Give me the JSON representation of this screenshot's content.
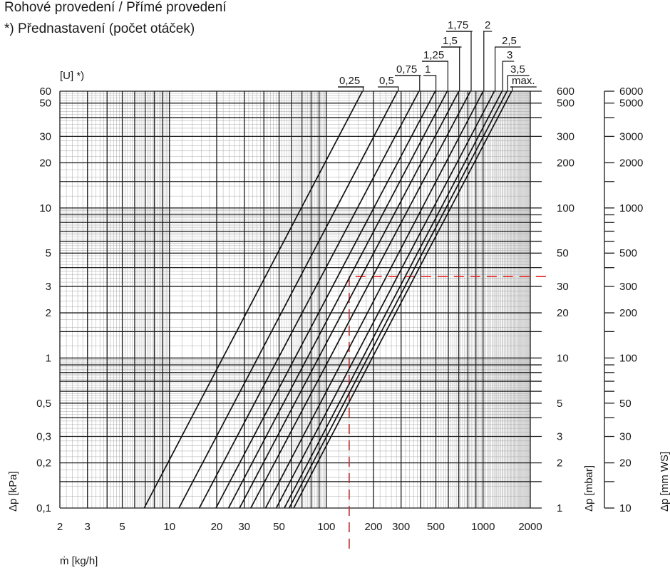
{
  "chart_data": {
    "type": "line",
    "title": "Rohové provedení / Přímé provedení",
    "subtitle": "*) Přednastavení (počet otáček)",
    "curve_group_label": "[U] *)",
    "xlabel": "ṁ [kg/h]",
    "ylabel_left": "Δp [kPa]",
    "ylabel_mid": "Δp [mbar]",
    "ylabel_right": "Δp [mm WS]",
    "x_scale": "log",
    "y_scale": "log",
    "xlim": [
      2,
      2000
    ],
    "ylim": [
      0.1,
      60
    ],
    "x_tick_labels": [
      "2",
      "3",
      "5",
      "10",
      "20",
      "30",
      "50",
      "100",
      "200",
      "300",
      "500",
      "1000",
      "2000"
    ],
    "y_tick_labels_kpa": [
      "0,1",
      "0,2",
      "0,3",
      "0,5",
      "1",
      "2",
      "3",
      "5",
      "10",
      "20",
      "30",
      "50",
      "60"
    ],
    "y_tick_labels_mbar": [
      "1",
      "2",
      "3",
      "5",
      "10",
      "20",
      "30",
      "50",
      "100",
      "200",
      "300",
      "500",
      "600"
    ],
    "y_tick_labels_mmws": [
      "10",
      "20",
      "30",
      "50",
      "100",
      "200",
      "300",
      "500",
      "1000",
      "2000",
      "3000",
      "5000",
      "6000"
    ],
    "grid": true,
    "series": [
      {
        "name": "0,25",
        "points": [
          [
            6.9,
            0.1
          ],
          [
            170,
            60
          ]
        ]
      },
      {
        "name": "0,5",
        "points": [
          [
            11.5,
            0.1
          ],
          [
            285,
            60
          ]
        ]
      },
      {
        "name": "0,75",
        "points": [
          [
            15.5,
            0.1
          ],
          [
            390,
            60
          ]
        ]
      },
      {
        "name": "1",
        "points": [
          [
            19.8,
            0.1
          ],
          [
            495,
            60
          ]
        ]
      },
      {
        "name": "1,25",
        "points": [
          [
            23.8,
            0.1
          ],
          [
            590,
            60
          ]
        ]
      },
      {
        "name": "1,5",
        "points": [
          [
            28,
            0.1
          ],
          [
            700,
            60
          ]
        ]
      },
      {
        "name": "1,75",
        "points": [
          [
            33,
            0.1
          ],
          [
            830,
            60
          ]
        ]
      },
      {
        "name": "2",
        "points": [
          [
            41,
            0.1
          ],
          [
            1000,
            60
          ]
        ]
      },
      {
        "name": "2,5",
        "points": [
          [
            48,
            0.1
          ],
          [
            1180,
            60
          ]
        ]
      },
      {
        "name": "3",
        "points": [
          [
            54,
            0.1
          ],
          [
            1320,
            60
          ]
        ]
      },
      {
        "name": "3,5",
        "points": [
          [
            58,
            0.1
          ],
          [
            1420,
            60
          ]
        ]
      },
      {
        "name": "max.",
        "points": [
          [
            62,
            0.1
          ],
          [
            1520,
            60
          ]
        ]
      }
    ],
    "reference_line": {
      "x": 140,
      "y": 3.5,
      "color": "#e0201e"
    }
  }
}
